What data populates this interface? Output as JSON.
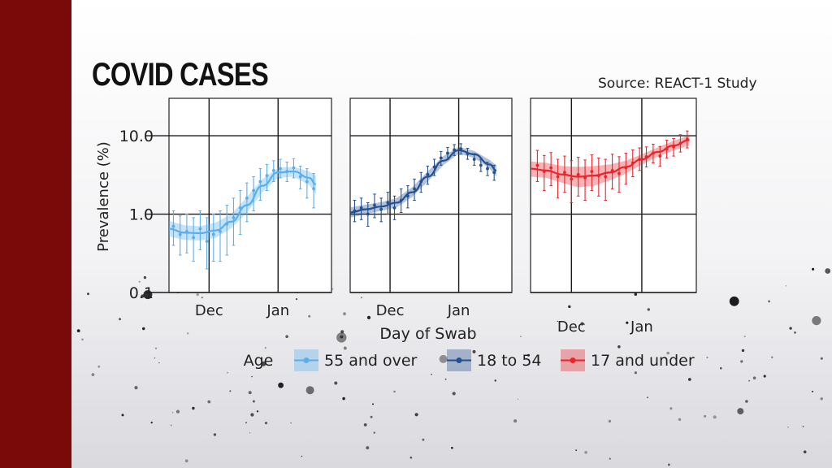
{
  "header": {
    "title": "COVID CASES",
    "source": "Source: REACT-1 Study"
  },
  "colors": {
    "left_bar": "#7a0a0a",
    "series_55_over": "#5aaeea",
    "series_18_54": "#24508f",
    "series_17_under": "#e8242c"
  },
  "chart_data": {
    "type": "line",
    "title": "",
    "ylabel": "Prevalence (%)",
    "xlabel": "Day of Swab",
    "yscale": "log",
    "ylim": [
      0.1,
      30
    ],
    "yticks": [
      "0.1",
      "1.0",
      "10.0"
    ],
    "ytick_values": [
      0.1,
      1.0,
      10.0
    ],
    "xlim": [
      "2020-11-13",
      "2021-01-25"
    ],
    "xticks": [
      "Dec",
      "Jan"
    ],
    "xtick_dates": [
      "2020-12-01",
      "2021-01-01"
    ],
    "grid": true,
    "legend": {
      "title": "Age",
      "placement": "bottom",
      "entries": [
        "55 and over",
        "18 to 54",
        "17 and under"
      ]
    },
    "panels": [
      {
        "name": "55 and over",
        "color": "#5aaeea",
        "smooth": {
          "x": [
            "2020-11-13",
            "2020-11-20",
            "2020-11-27",
            "2020-12-04",
            "2020-12-11",
            "2020-12-18",
            "2020-12-25",
            "2021-01-01",
            "2021-01-08",
            "2021-01-15",
            "2021-01-18"
          ],
          "y": [
            0.65,
            0.58,
            0.57,
            0.62,
            0.8,
            1.3,
            2.3,
            3.4,
            3.5,
            2.9,
            2.4
          ],
          "lower": [
            0.52,
            0.47,
            0.46,
            0.5,
            0.66,
            1.05,
            1.9,
            2.9,
            3.0,
            2.35,
            1.8
          ],
          "upper": [
            0.82,
            0.72,
            0.7,
            0.78,
            1.0,
            1.65,
            2.8,
            3.9,
            4.0,
            3.5,
            3.1
          ]
        },
        "points": {
          "x": [
            "2020-11-15",
            "2020-11-18",
            "2020-11-21",
            "2020-11-24",
            "2020-11-27",
            "2020-11-30",
            "2020-12-03",
            "2020-12-06",
            "2020-12-09",
            "2020-12-12",
            "2020-12-15",
            "2020-12-18",
            "2020-12-21",
            "2020-12-24",
            "2020-12-27",
            "2020-12-30",
            "2021-01-02",
            "2021-01-05",
            "2021-01-08",
            "2021-01-11",
            "2021-01-14",
            "2021-01-17"
          ],
          "y": [
            0.7,
            0.55,
            0.6,
            0.5,
            0.65,
            0.45,
            0.55,
            0.6,
            0.75,
            0.9,
            1.2,
            1.6,
            2.0,
            2.6,
            3.1,
            3.6,
            3.8,
            3.5,
            3.9,
            3.0,
            2.6,
            2.1
          ],
          "lower": [
            0.4,
            0.3,
            0.32,
            0.25,
            0.35,
            0.2,
            0.25,
            0.25,
            0.3,
            0.4,
            0.55,
            0.8,
            1.1,
            1.5,
            2.0,
            2.6,
            2.9,
            2.6,
            2.9,
            2.1,
            1.6,
            1.2
          ],
          "upper": [
            1.1,
            0.95,
            1.0,
            0.9,
            1.1,
            0.9,
            1.0,
            1.1,
            1.3,
            1.6,
            2.0,
            2.5,
            3.0,
            3.8,
            4.3,
            4.8,
            5.0,
            4.6,
            5.1,
            4.1,
            3.8,
            3.3
          ]
        }
      },
      {
        "name": "18 to 54",
        "color": "#24508f",
        "smooth": {
          "x": [
            "2020-11-13",
            "2020-11-20",
            "2020-11-27",
            "2020-12-04",
            "2020-12-11",
            "2020-12-18",
            "2020-12-25",
            "2021-01-01",
            "2021-01-08",
            "2021-01-15",
            "2021-01-18"
          ],
          "y": [
            1.05,
            1.15,
            1.25,
            1.4,
            1.9,
            3.0,
            4.8,
            6.5,
            5.8,
            4.3,
            3.6
          ],
          "lower": [
            0.9,
            1.0,
            1.1,
            1.22,
            1.65,
            2.6,
            4.2,
            5.9,
            5.2,
            3.8,
            3.0
          ],
          "upper": [
            1.22,
            1.32,
            1.42,
            1.6,
            2.2,
            3.5,
            5.5,
            7.2,
            6.4,
            4.9,
            4.2
          ]
        },
        "points": {
          "x": [
            "2020-11-15",
            "2020-11-18",
            "2020-11-21",
            "2020-11-24",
            "2020-11-27",
            "2020-11-30",
            "2020-12-03",
            "2020-12-06",
            "2020-12-09",
            "2020-12-12",
            "2020-12-15",
            "2020-12-18",
            "2020-12-21",
            "2020-12-24",
            "2020-12-27",
            "2020-12-30",
            "2021-01-02",
            "2021-01-05",
            "2021-01-08",
            "2021-01-11",
            "2021-01-14",
            "2021-01-17"
          ],
          "y": [
            1.1,
            1.2,
            1.0,
            1.3,
            1.15,
            1.4,
            1.2,
            1.5,
            1.7,
            2.1,
            2.6,
            3.2,
            4.0,
            5.2,
            6.0,
            6.6,
            6.8,
            5.9,
            5.0,
            4.2,
            3.8,
            3.4
          ],
          "lower": [
            0.8,
            0.85,
            0.7,
            0.9,
            0.8,
            1.0,
            0.85,
            1.05,
            1.2,
            1.5,
            1.9,
            2.4,
            3.1,
            4.2,
            5.0,
            5.6,
            5.8,
            5.0,
            4.2,
            3.5,
            3.1,
            2.7
          ],
          "upper": [
            1.5,
            1.6,
            1.4,
            1.8,
            1.6,
            1.9,
            1.7,
            2.1,
            2.3,
            2.8,
            3.4,
            4.1,
            5.0,
            6.3,
            7.1,
            7.7,
            7.9,
            6.9,
            5.9,
            5.0,
            4.6,
            4.2
          ]
        }
      },
      {
        "name": "17 and under",
        "color": "#e8242c",
        "smooth": {
          "x": [
            "2020-11-13",
            "2020-11-20",
            "2020-11-27",
            "2020-12-04",
            "2020-12-11",
            "2020-12-18",
            "2020-12-25",
            "2021-01-01",
            "2021-01-08",
            "2021-01-15",
            "2021-01-22"
          ],
          "y": [
            3.8,
            3.6,
            3.2,
            3.0,
            3.1,
            3.4,
            4.0,
            5.0,
            6.2,
            7.5,
            8.8
          ],
          "lower": [
            3.0,
            2.9,
            2.5,
            2.2,
            2.3,
            2.7,
            3.3,
            4.3,
            5.4,
            6.5,
            7.5
          ],
          "upper": [
            4.7,
            4.5,
            4.1,
            4.0,
            4.1,
            4.3,
            4.8,
            5.8,
            7.1,
            8.6,
            10.2
          ]
        },
        "points": {
          "x": [
            "2020-11-16",
            "2020-11-19",
            "2020-11-22",
            "2020-11-25",
            "2020-11-28",
            "2020-12-01",
            "2020-12-04",
            "2020-12-07",
            "2020-12-10",
            "2020-12-13",
            "2020-12-16",
            "2020-12-19",
            "2020-12-22",
            "2020-12-25",
            "2020-12-28",
            "2020-12-31",
            "2021-01-03",
            "2021-01-06",
            "2021-01-09",
            "2021-01-12",
            "2021-01-15",
            "2021-01-18",
            "2021-01-21"
          ],
          "y": [
            4.2,
            3.5,
            3.9,
            3.0,
            3.4,
            2.8,
            3.2,
            2.9,
            3.5,
            3.1,
            3.0,
            3.6,
            3.3,
            3.9,
            4.5,
            5.0,
            5.4,
            6.0,
            5.5,
            6.8,
            7.2,
            8.0,
            9.0
          ],
          "lower": [
            2.6,
            2.0,
            2.3,
            1.6,
            1.9,
            1.4,
            1.7,
            1.5,
            2.0,
            1.7,
            1.5,
            2.1,
            1.9,
            2.4,
            3.0,
            3.6,
            4.0,
            4.5,
            4.1,
            5.2,
            5.5,
            6.2,
            7.0
          ],
          "upper": [
            6.5,
            5.6,
            6.1,
            5.0,
            5.5,
            4.8,
            5.3,
            4.9,
            5.7,
            5.2,
            5.0,
            5.8,
            5.4,
            6.0,
            6.6,
            7.0,
            7.2,
            7.8,
            7.3,
            8.8,
            9.2,
            10.3,
            11.5
          ]
        }
      }
    ]
  }
}
